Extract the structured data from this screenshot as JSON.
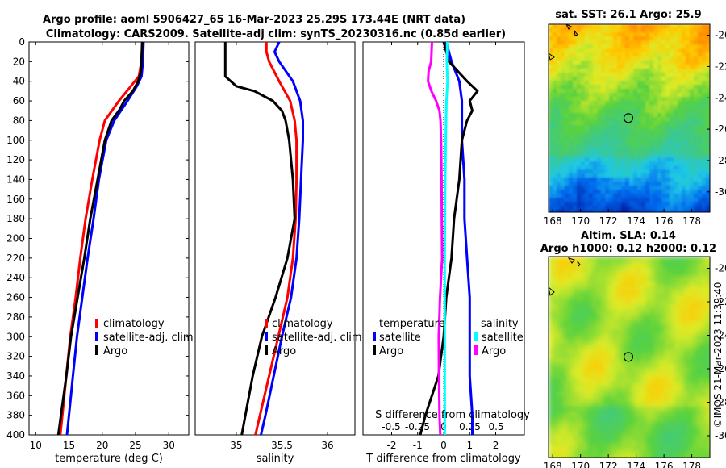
{
  "title_line1": "Argo profile: aoml 5906427_65 16-Mar-2023 25.29S 173.44E (NRT data)",
  "title_line2": "Climatology: CARS2009. Satellite-adj clim: synTS_20230316.nc (0.85d earlier)",
  "sst_title": "sat. SST: 26.1 Argo: 25.9",
  "sla_title1": "Altim. SLA: 0.14",
  "sla_title2": "Argo h1000: 0.12 h2000: 0.12",
  "timestamp": "©IMOS 21-Mar-2023 11:39:40",
  "colors": {
    "clim": "#ff0000",
    "sat": "#0000ff",
    "argo": "#000000",
    "sat_sal": "#00ffff",
    "argo_sal": "#ff00ff"
  },
  "legend_temp": [
    "climatology",
    "satellite-adj. clim",
    "Argo"
  ],
  "legend_sal": [
    "climatology",
    "satellite-adj. clim",
    "Argo"
  ],
  "legend_diff": {
    "temperature_header": "temperature",
    "salinity_header": "salinity",
    "temperature": [
      "satellite",
      "Argo"
    ],
    "salinity": [
      "satellite",
      "Argo"
    ]
  },
  "chart_data": [
    {
      "type": "line",
      "name": "temperature-profile",
      "xlabel": "temperature (deg C)",
      "ylabel": "depth",
      "xlim": [
        9,
        33
      ],
      "ylim": [
        400,
        0
      ],
      "xticks": [
        10,
        15,
        20,
        25,
        30
      ],
      "yticks": [
        0,
        20,
        40,
        60,
        80,
        100,
        120,
        140,
        160,
        180,
        200,
        220,
        240,
        260,
        280,
        300,
        320,
        340,
        360,
        380,
        400
      ],
      "series": [
        {
          "name": "climatology",
          "color": "#ff0000",
          "depth": [
            0,
            20,
            35,
            45,
            60,
            80,
            100,
            140,
            180,
            220,
            260,
            300,
            340,
            380,
            400
          ],
          "values": [
            26.0,
            25.9,
            25.5,
            24.3,
            22.5,
            20.4,
            19.6,
            18.5,
            17.5,
            16.7,
            16.0,
            15.2,
            14.6,
            14.0,
            13.7
          ]
        },
        {
          "name": "satellite-adj. clim",
          "color": "#0000ff",
          "depth": [
            0,
            20,
            35,
            45,
            60,
            80,
            100,
            140,
            180,
            220,
            260,
            300,
            340,
            380,
            400
          ],
          "values": [
            26.2,
            26.1,
            25.9,
            25.2,
            23.8,
            21.8,
            20.6,
            19.5,
            18.7,
            17.8,
            17.0,
            16.2,
            15.6,
            15.0,
            14.7
          ]
        },
        {
          "name": "Argo",
          "color": "#000000",
          "depth": [
            0,
            20,
            30,
            40,
            50,
            60,
            70,
            80,
            100,
            140,
            180,
            220,
            260,
            300,
            340,
            380,
            400
          ],
          "values": [
            26.0,
            25.9,
            25.8,
            25.4,
            24.6,
            23.3,
            22.5,
            21.4,
            20.4,
            19.3,
            18.2,
            17.3,
            16.3,
            15.3,
            14.6,
            13.8,
            13.4
          ]
        }
      ]
    },
    {
      "type": "line",
      "name": "salinity-profile",
      "xlabel": "salinity",
      "xlim": [
        34.55,
        36.3
      ],
      "ylim": [
        400,
        0
      ],
      "xticks": [
        35,
        35.5,
        36
      ],
      "xticklabels": [
        "35",
        "35.5",
        "36"
      ],
      "series": [
        {
          "name": "climatology",
          "color": "#ff0000",
          "depth": [
            0,
            10,
            20,
            40,
            60,
            80,
            100,
            140,
            180,
            220,
            260,
            300,
            340,
            380,
            400
          ],
          "values": [
            35.33,
            35.33,
            35.36,
            35.47,
            35.59,
            35.64,
            35.66,
            35.66,
            35.65,
            35.62,
            35.56,
            35.46,
            35.36,
            35.26,
            35.21
          ]
        },
        {
          "name": "satellite-adj. clim",
          "color": "#0000ff",
          "depth": [
            0,
            10,
            20,
            40,
            60,
            80,
            100,
            140,
            180,
            220,
            260,
            300,
            340,
            380,
            400
          ],
          "values": [
            35.47,
            35.42,
            35.47,
            35.62,
            35.7,
            35.73,
            35.73,
            35.71,
            35.69,
            35.66,
            35.6,
            35.5,
            35.41,
            35.32,
            35.27
          ]
        },
        {
          "name": "Argo",
          "color": "#000000",
          "depth": [
            0,
            20,
            35,
            45,
            50,
            60,
            70,
            80,
            90,
            100,
            120,
            140,
            180,
            220,
            260,
            300,
            340,
            380,
            400
          ],
          "values": [
            34.88,
            34.88,
            34.88,
            35.0,
            35.2,
            35.4,
            35.5,
            35.54,
            35.56,
            35.58,
            35.6,
            35.62,
            35.64,
            35.56,
            35.43,
            35.28,
            35.18,
            35.1,
            35.06
          ]
        }
      ]
    },
    {
      "type": "line",
      "name": "difference-profile",
      "xlabel": "T difference from climatology",
      "xlabel_top": "S difference from climatology",
      "xlim": [
        -3.1,
        3.1
      ],
      "ylim": [
        400,
        0
      ],
      "xticks": [
        -2,
        -1,
        0,
        1,
        2
      ],
      "sticks": [
        -0.5,
        -0.25,
        0,
        0.25,
        0.5
      ],
      "sticklabels": [
        "-0.5",
        "-0.25",
        "0",
        "0.25",
        "0.5"
      ],
      "series": [
        {
          "name": "temperature satellite",
          "color": "#0000ff",
          "depth": [
            0,
            20,
            40,
            60,
            80,
            100,
            140,
            180,
            220,
            260,
            300,
            340,
            380,
            400
          ],
          "values": [
            0.1,
            0.3,
            0.6,
            0.7,
            0.7,
            0.7,
            0.8,
            0.8,
            0.9,
            1.0,
            1.0,
            1.0,
            1.1,
            1.1
          ]
        },
        {
          "name": "temperature Argo",
          "color": "#000000",
          "depth": [
            0,
            20,
            40,
            50,
            60,
            70,
            80,
            100,
            140,
            180,
            220,
            260,
            300,
            340,
            380,
            400
          ],
          "values": [
            0.0,
            0.2,
            0.9,
            1.3,
            1.0,
            1.1,
            0.9,
            0.7,
            0.6,
            0.4,
            0.3,
            0.1,
            0.0,
            -0.2,
            -0.7,
            -0.9
          ]
        },
        {
          "name": "salinity satellite",
          "color": "#00ffff",
          "depth": [
            0,
            20,
            40,
            60,
            80,
            100,
            140,
            180,
            220,
            260,
            300,
            340,
            380,
            400
          ],
          "values": [
            0.14,
            0.12,
            0.15,
            0.11,
            0.09,
            0.08,
            0.06,
            0.05,
            0.04,
            0.04,
            0.04,
            0.04,
            0.04,
            0.04
          ]
        },
        {
          "name": "salinity Argo",
          "color": "#ff00ff",
          "depth": [
            0,
            20,
            30,
            40,
            50,
            60,
            70,
            80,
            100,
            140,
            180,
            220,
            260,
            300,
            340,
            380,
            400
          ],
          "values": [
            -0.45,
            -0.48,
            -0.58,
            -0.6,
            -0.47,
            -0.29,
            -0.16,
            -0.12,
            -0.1,
            -0.08,
            -0.07,
            -0.06,
            -0.14,
            -0.19,
            -0.18,
            -0.16,
            -0.13
          ]
        }
      ]
    },
    {
      "type": "heatmap",
      "name": "sst-map",
      "title": "sat. SST: 26.1 Argo: 25.9",
      "xlim": [
        167.7,
        179.3
      ],
      "ylim": [
        -31.3,
        -19.3
      ],
      "xticks": [
        168,
        170,
        172,
        174,
        176,
        178
      ],
      "yticks": [
        -20,
        -22,
        -24,
        -26,
        -28,
        -30
      ],
      "marker": {
        "lon": 173.44,
        "lat": -25.29
      }
    },
    {
      "type": "heatmap",
      "name": "sla-map",
      "title": "Altim. SLA: 0.14",
      "xlim": [
        167.7,
        179.3
      ],
      "ylim": [
        -31.3,
        -19.3
      ],
      "xticks": [
        168,
        170,
        172,
        174,
        176,
        178
      ],
      "yticks": [
        -20,
        -22,
        -24,
        -26,
        -28,
        -30
      ],
      "marker": {
        "lon": 173.44,
        "lat": -25.29
      }
    }
  ]
}
